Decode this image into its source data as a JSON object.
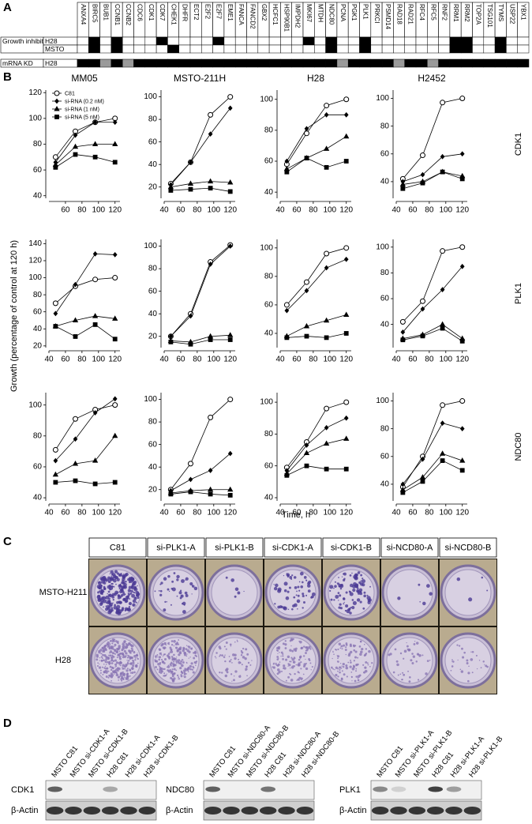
{
  "panel_labels": [
    "A",
    "B",
    "C",
    "D"
  ],
  "panel_a": {
    "genes": [
      "ANXA4",
      "BIRC5",
      "BUB1",
      "CCNB1",
      "CCNB2",
      "CDC6",
      "CDK1",
      "CDK7",
      "CHEK1",
      "DHFR",
      "ECT2",
      "E2F2",
      "E2F7",
      "EME1",
      "FANCA",
      "FANCD2",
      "GBX2",
      "HCFC1",
      "HSP90B1",
      "IMPDH2",
      "MKI67",
      "MTDH",
      "NDC80",
      "PCNA",
      "PGK1",
      "PLK1",
      "PRKCI",
      "PSMD14",
      "RAD18",
      "RAD21",
      "RFC4",
      "RFC5",
      "RNF2",
      "RRM1",
      "RRM2",
      "TOP2A",
      "TSG101",
      "TYMS",
      "USP22",
      "YBX1"
    ],
    "groups": [
      {
        "label": "Growth inhibition",
        "rows": [
          {
            "label": "H28",
            "cells": [
              0,
              1,
              0,
              1,
              0,
              0,
              0,
              1,
              0,
              0,
              0,
              0,
              1,
              0,
              0,
              0,
              0,
              0,
              0,
              0,
              1,
              0,
              1,
              0,
              0,
              1,
              0,
              0,
              0,
              0,
              0,
              0,
              0,
              1,
              1,
              0,
              0,
              1,
              0,
              0
            ]
          },
          {
            "label": "MSTO",
            "cells": [
              0,
              1,
              0,
              1,
              0,
              0,
              0,
              0,
              1,
              0,
              0,
              0,
              0,
              0,
              0,
              0,
              0,
              0,
              0,
              0,
              0,
              0,
              1,
              0,
              0,
              1,
              0,
              0,
              0,
              0,
              0,
              0,
              0,
              1,
              1,
              0,
              0,
              1,
              0,
              0
            ]
          }
        ]
      },
      {
        "label": "mRNA KD",
        "rows": [
          {
            "label": "H28",
            "cells": [
              1,
              1,
              0.5,
              1,
              0.5,
              1,
              1,
              1,
              1,
              1,
              1,
              1,
              1,
              1,
              1,
              1,
              1,
              1,
              1,
              1,
              1,
              1,
              1,
              0.5,
              1,
              1,
              1,
              1,
              0.5,
              1,
              1,
              0.5,
              1,
              1,
              1,
              1,
              1,
              1,
              1,
              1
            ]
          }
        ]
      }
    ]
  },
  "panel_b": {
    "ylabel": "Growth (percentage of control at 120 h)",
    "xlabel": "Time, h"
  },
  "chart_data": [
    {
      "type": "line",
      "title": "MM05",
      "x": [
        48,
        72,
        96,
        120
      ],
      "xlim": [
        40,
        126
      ],
      "xticks": [
        60,
        80,
        100,
        120
      ],
      "ylim": [
        38,
        122
      ],
      "yticks": [
        40,
        60,
        80,
        100,
        120
      ],
      "legend": "upper left",
      "series": [
        {
          "name": "C81",
          "marker": "open-circle",
          "color": "#000",
          "values": [
            70,
            90,
            97,
            100
          ]
        },
        {
          "name": "si-RNA (0.2 nM)",
          "marker": "diamond",
          "color": "#000",
          "values": [
            66,
            87,
            97,
            97
          ]
        },
        {
          "name": "si-RNA (1 nM)",
          "marker": "triangle",
          "color": "#000",
          "values": [
            64,
            78,
            80,
            80
          ]
        },
        {
          "name": "si-RNA (5 nM)",
          "marker": "square",
          "color": "#000",
          "values": [
            62,
            72,
            70,
            66
          ]
        }
      ]
    },
    {
      "type": "line",
      "title": "MSTO-211H",
      "x": [
        48,
        72,
        96,
        120
      ],
      "xlim": [
        40,
        126
      ],
      "xticks": [
        40,
        60,
        80,
        100,
        120
      ],
      "ylim": [
        10,
        106
      ],
      "yticks": [
        20,
        40,
        60,
        80,
        100
      ],
      "series": [
        {
          "marker": "open-circle",
          "color": "#000",
          "values": [
            23,
            42,
            84,
            100
          ]
        },
        {
          "marker": "diamond",
          "color": "#000",
          "values": [
            22,
            42,
            67,
            90
          ]
        },
        {
          "marker": "triangle",
          "color": "#000",
          "values": [
            20,
            23,
            25,
            24
          ]
        },
        {
          "marker": "square",
          "color": "#000",
          "values": [
            17,
            18,
            19,
            16
          ]
        }
      ]
    },
    {
      "type": "line",
      "title": "H28",
      "x": [
        48,
        72,
        96,
        120
      ],
      "xlim": [
        40,
        126
      ],
      "xticks": [
        40,
        60,
        80,
        100,
        120
      ],
      "ylim": [
        36,
        106
      ],
      "yticks": [
        40,
        60,
        80,
        100
      ],
      "series": [
        {
          "marker": "open-circle",
          "color": "#000",
          "values": [
            58,
            78,
            96,
            100
          ]
        },
        {
          "marker": "diamond",
          "color": "#000",
          "values": [
            60,
            81,
            90,
            90
          ]
        },
        {
          "marker": "triangle",
          "color": "#000",
          "values": [
            55,
            62,
            68,
            76
          ]
        },
        {
          "marker": "square",
          "color": "#000",
          "values": [
            53,
            62,
            56,
            60
          ]
        }
      ]
    },
    {
      "type": "line",
      "title": "H2452",
      "row_label": "CDK1",
      "x": [
        48,
        72,
        96,
        120
      ],
      "xlim": [
        40,
        126
      ],
      "xticks": [
        40,
        60,
        80,
        100,
        120
      ],
      "ylim": [
        28,
        106
      ],
      "yticks": [
        40,
        60,
        80,
        100
      ],
      "series": [
        {
          "marker": "open-circle",
          "color": "#000",
          "values": [
            42,
            59,
            97,
            100
          ]
        },
        {
          "marker": "diamond",
          "color": "#000",
          "values": [
            40,
            45,
            58,
            60
          ]
        },
        {
          "marker": "triangle",
          "color": "#000",
          "values": [
            38,
            40,
            47,
            44
          ]
        },
        {
          "marker": "square",
          "color": "#000",
          "values": [
            35,
            39,
            47,
            42
          ]
        }
      ]
    },
    {
      "type": "line",
      "x": [
        48,
        72,
        96,
        120
      ],
      "xlim": [
        40,
        126
      ],
      "xticks": [
        40,
        60,
        80,
        100,
        120
      ],
      "ylim": [
        18,
        145
      ],
      "yticks": [
        20,
        40,
        60,
        80,
        100,
        120,
        140
      ],
      "series": [
        {
          "marker": "open-circle",
          "color": "#000",
          "values": [
            70,
            90,
            98,
            100
          ]
        },
        {
          "marker": "diamond",
          "color": "#000",
          "values": [
            58,
            92,
            128,
            127
          ]
        },
        {
          "marker": "triangle",
          "color": "#000",
          "values": [
            43,
            50,
            55,
            52
          ]
        },
        {
          "marker": "square",
          "color": "#000",
          "values": [
            43,
            31,
            45,
            28
          ]
        }
      ]
    },
    {
      "type": "line",
      "x": [
        48,
        72,
        96,
        120
      ],
      "xlim": [
        40,
        126
      ],
      "xticks": [
        40,
        60,
        80,
        100,
        120
      ],
      "ylim": [
        10,
        106
      ],
      "yticks": [
        20,
        40,
        60,
        80,
        100
      ],
      "series": [
        {
          "marker": "open-circle",
          "color": "#000",
          "values": [
            20,
            40,
            86,
            101
          ]
        },
        {
          "marker": "diamond",
          "color": "#000",
          "values": [
            20,
            38,
            84,
            100
          ]
        },
        {
          "marker": "triangle",
          "color": "#000",
          "values": [
            16,
            15,
            20,
            21
          ]
        },
        {
          "marker": "square",
          "color": "#000",
          "values": [
            15,
            13,
            17,
            17
          ]
        }
      ]
    },
    {
      "type": "line",
      "x": [
        48,
        72,
        96,
        120
      ],
      "xlim": [
        40,
        126
      ],
      "xticks": [
        40,
        60,
        80,
        100,
        120
      ],
      "ylim": [
        30,
        106
      ],
      "yticks": [
        40,
        60,
        80,
        100
      ],
      "series": [
        {
          "marker": "open-circle",
          "color": "#000",
          "values": [
            60,
            76,
            96,
            100
          ]
        },
        {
          "marker": "diamond",
          "color": "#000",
          "values": [
            56,
            70,
            86,
            92
          ]
        },
        {
          "marker": "triangle",
          "color": "#000",
          "values": [
            38,
            45,
            49,
            53
          ]
        },
        {
          "marker": "square",
          "color": "#000",
          "values": [
            37,
            38,
            37,
            40
          ]
        }
      ]
    },
    {
      "type": "line",
      "row_label": "PLK1",
      "x": [
        48,
        72,
        96,
        120
      ],
      "xlim": [
        40,
        126
      ],
      "xticks": [
        40,
        60,
        80,
        100,
        120
      ],
      "ylim": [
        22,
        106
      ],
      "yticks": [
        40,
        60,
        80,
        100
      ],
      "series": [
        {
          "marker": "open-circle",
          "color": "#000",
          "values": [
            42,
            58,
            97,
            100
          ]
        },
        {
          "marker": "diamond",
          "color": "#000",
          "values": [
            34,
            52,
            67,
            85
          ]
        },
        {
          "marker": "triangle",
          "color": "#000",
          "values": [
            29,
            32,
            40,
            29
          ]
        },
        {
          "marker": "square",
          "color": "#000",
          "values": [
            28,
            31,
            37,
            27
          ]
        }
      ]
    },
    {
      "type": "line",
      "x": [
        48,
        72,
        96,
        120
      ],
      "xlim": [
        40,
        126
      ],
      "xticks": [
        40,
        60,
        80,
        100,
        120
      ],
      "ylim": [
        38,
        108
      ],
      "yticks": [
        40,
        60,
        80,
        100
      ],
      "series": [
        {
          "marker": "open-circle",
          "color": "#000",
          "values": [
            71,
            91,
            97,
            100
          ]
        },
        {
          "marker": "diamond",
          "color": "#000",
          "values": [
            64,
            78,
            95,
            104
          ]
        },
        {
          "marker": "triangle",
          "color": "#000",
          "values": [
            55,
            62,
            64,
            80
          ]
        },
        {
          "marker": "square",
          "color": "#000",
          "values": [
            50,
            51,
            49,
            50
          ]
        }
      ]
    },
    {
      "type": "line",
      "x": [
        48,
        72,
        96,
        120
      ],
      "xlim": [
        40,
        126
      ],
      "xticks": [
        40,
        60,
        80,
        100,
        120
      ],
      "ylim": [
        10,
        106
      ],
      "yticks": [
        20,
        40,
        60,
        80,
        100
      ],
      "series": [
        {
          "marker": "open-circle",
          "color": "#000",
          "values": [
            20,
            43,
            84,
            100
          ]
        },
        {
          "marker": "diamond",
          "color": "#000",
          "values": [
            19,
            29,
            37,
            52
          ]
        },
        {
          "marker": "triangle",
          "color": "#000",
          "values": [
            17,
            19,
            20,
            20
          ]
        },
        {
          "marker": "square",
          "color": "#000",
          "values": [
            16,
            18,
            16,
            15
          ]
        }
      ]
    },
    {
      "type": "line",
      "x": [
        48,
        72,
        96,
        120
      ],
      "xlim": [
        40,
        126
      ],
      "xticks": [
        40,
        60,
        80,
        100,
        120
      ],
      "ylim": [
        38,
        106
      ],
      "yticks": [
        40,
        60,
        80,
        100
      ],
      "series": [
        {
          "marker": "open-circle",
          "color": "#000",
          "values": [
            59,
            75,
            96,
            100
          ]
        },
        {
          "marker": "diamond",
          "color": "#000",
          "values": [
            57,
            73,
            84,
            90
          ]
        },
        {
          "marker": "triangle",
          "color": "#000",
          "values": [
            55,
            68,
            74,
            77
          ]
        },
        {
          "marker": "square",
          "color": "#000",
          "values": [
            54,
            60,
            58,
            58
          ]
        }
      ]
    },
    {
      "type": "line",
      "row_label": "NDC80",
      "x": [
        48,
        72,
        96,
        120
      ],
      "xlim": [
        40,
        126
      ],
      "xticks": [
        40,
        60,
        80,
        100,
        120
      ],
      "ylim": [
        28,
        106
      ],
      "yticks": [
        40,
        60,
        80,
        100
      ],
      "series": [
        {
          "marker": "open-circle",
          "color": "#000",
          "values": [
            38,
            60,
            97,
            100
          ]
        },
        {
          "marker": "diamond",
          "color": "#000",
          "values": [
            40,
            58,
            84,
            80
          ]
        },
        {
          "marker": "triangle",
          "color": "#000",
          "values": [
            36,
            45,
            62,
            57
          ]
        },
        {
          "marker": "square",
          "color": "#000",
          "values": [
            34,
            42,
            57,
            50
          ]
        }
      ]
    }
  ],
  "panel_c": {
    "columns": [
      "C81",
      "si-PLK1-A",
      "si-PLK1-B",
      "si-CDK1-A",
      "si-CDK1-B",
      "si-NCD80-A",
      "si-NCD80-B"
    ],
    "rows": [
      "MSTO-H211",
      "H28"
    ]
  },
  "panel_d": [
    {
      "lanes": [
        "MSTO C81",
        "MSTO si-CDK1-A",
        "MSTO si-CDK1-B",
        "H28 C81",
        "H28 si-CDK1-A",
        "H28 si-CDK1-B"
      ],
      "target": "CDK1",
      "control": "β-Actin"
    },
    {
      "lanes": [
        "MSTO C81",
        "MSTO si-NDC80-A",
        "MSTO si-NDC80-B",
        "H28 C81",
        "H28 si-NDC80-A",
        "H28 si-NDC80-B"
      ],
      "target": "NDC80",
      "control": "β-Actin"
    },
    {
      "lanes": [
        "MSTO C81",
        "MSTO si-PLK1-A",
        "MSTO si-PLK1-B",
        "H28 C81",
        "H28 si-PLK1-A",
        "H28 si-PLK1-B"
      ],
      "target": "PLK1",
      "control": "β-Actin"
    }
  ]
}
